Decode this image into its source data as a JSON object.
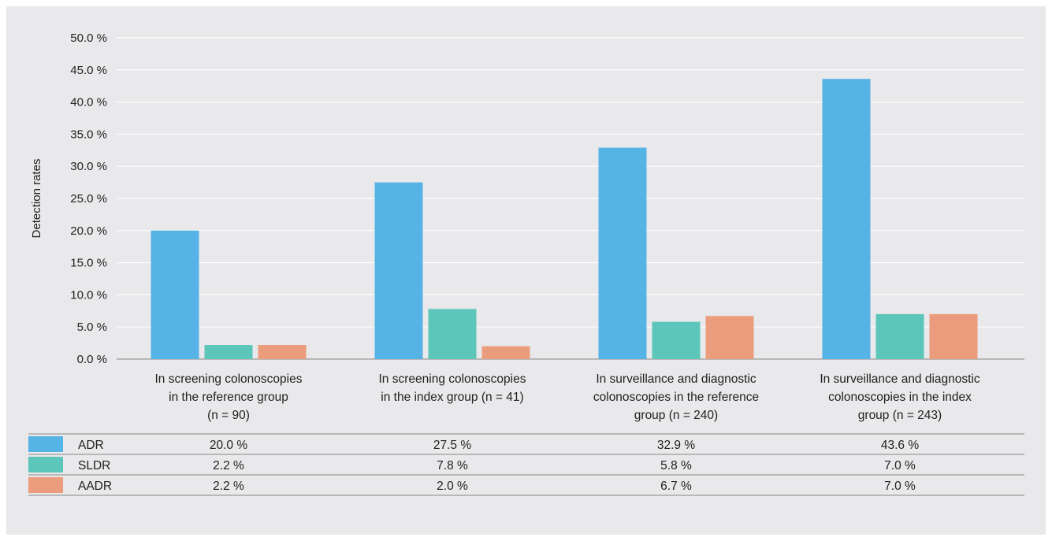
{
  "chart_data": {
    "type": "bar",
    "ylabel": "Detection rates",
    "ylim": [
      0,
      50
    ],
    "yticks": [
      "0.0 %",
      "5.0 %",
      "10.0 %",
      "15.0 %",
      "20.0 %",
      "25.0 %",
      "30.0 %",
      "35.0 %",
      "40.0 %",
      "45.0 %",
      "50.0 %"
    ],
    "grid": true,
    "legend": "data table below chart",
    "categories": [
      [
        "In screening colonoscopies",
        "in the reference group",
        "(n = 90)"
      ],
      [
        "In screening colonoscopies",
        "in the index group (n = 41)"
      ],
      [
        "In surveillance and diagnostic",
        "colonoscopies in the reference",
        "group (n = 240)"
      ],
      [
        "In surveillance and diagnostic",
        "colonoscopies in the index",
        "group (n = 243)"
      ]
    ],
    "series": [
      {
        "name": "ADR",
        "color": "#55b3e6",
        "values": [
          20.0,
          27.5,
          32.9,
          43.6
        ],
        "labels": [
          "20.0 %",
          "27.5 %",
          "32.9 %",
          "43.6 %"
        ]
      },
      {
        "name": "SLDR",
        "color": "#5cc6bb",
        "values": [
          2.2,
          7.8,
          5.8,
          7.0
        ],
        "labels": [
          "2.2 %",
          "7.8 %",
          "5.8 %",
          "7.0 %"
        ]
      },
      {
        "name": "AADR",
        "color": "#eb9c7c",
        "values": [
          2.2,
          2.0,
          6.7,
          7.0
        ],
        "labels": [
          "2.2 %",
          "2.0 %",
          "6.7 %",
          "7.0 %"
        ]
      }
    ]
  }
}
